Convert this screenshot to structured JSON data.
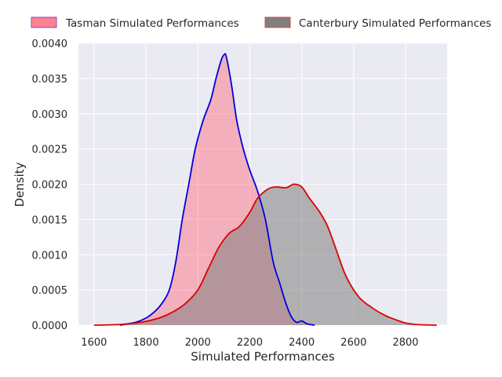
{
  "chart_data": {
    "type": "area",
    "title": "",
    "xlabel": "Simulated Performances",
    "ylabel": "Density",
    "xlim": [
      1540,
      2960
    ],
    "ylim": [
      0,
      0.004
    ],
    "xticks": [
      1600,
      1800,
      2000,
      2200,
      2400,
      2600,
      2800
    ],
    "xtick_labels": [
      "1600",
      "1800",
      "2000",
      "2200",
      "2400",
      "2600",
      "2800"
    ],
    "yticks": [
      0,
      0.0005,
      0.001,
      0.0015,
      0.002,
      0.0025,
      0.003,
      0.0035,
      0.004
    ],
    "ytick_labels": [
      "0.0000",
      "0.0005",
      "0.0010",
      "0.0015",
      "0.0020",
      "0.0025",
      "0.0030",
      "0.0035",
      "0.0040"
    ],
    "grid": true,
    "legend_position": "top",
    "background": "#EAEAF2",
    "series": [
      {
        "name": "Tasman Simulated Performances",
        "line_color": "#0000DD",
        "fill_color": "#FF6B7A",
        "fill_opacity": 0.45,
        "legend_edge": "#8844CC",
        "points": [
          [
            1700,
            0.0
          ],
          [
            1760,
            4e-05
          ],
          [
            1800,
            0.0001
          ],
          [
            1830,
            0.00018
          ],
          [
            1860,
            0.0003
          ],
          [
            1890,
            0.0005
          ],
          [
            1915,
            0.0009
          ],
          [
            1940,
            0.0015
          ],
          [
            1965,
            0.002
          ],
          [
            1990,
            0.0025
          ],
          [
            2020,
            0.0029
          ],
          [
            2050,
            0.0032
          ],
          [
            2070,
            0.0035
          ],
          [
            2090,
            0.00376
          ],
          [
            2102,
            0.00384
          ],
          [
            2110,
            0.0038
          ],
          [
            2130,
            0.0034
          ],
          [
            2150,
            0.0029
          ],
          [
            2175,
            0.0025
          ],
          [
            2200,
            0.0022
          ],
          [
            2230,
            0.0019
          ],
          [
            2260,
            0.0015
          ],
          [
            2290,
            0.0009
          ],
          [
            2315,
            0.0006
          ],
          [
            2340,
            0.0003
          ],
          [
            2360,
            0.00012
          ],
          [
            2380,
            4e-05
          ],
          [
            2400,
            6e-05
          ],
          [
            2420,
            2e-05
          ],
          [
            2450,
            0.0
          ]
        ]
      },
      {
        "name": "Canterbury Simulated Performances",
        "line_color": "#DD0000",
        "fill_color": "#808080",
        "fill_opacity": 0.55,
        "legend_edge": "#DD4444",
        "points": [
          [
            1600,
            0.0
          ],
          [
            1700,
            1e-05
          ],
          [
            1780,
            4e-05
          ],
          [
            1850,
            0.0001
          ],
          [
            1900,
            0.00018
          ],
          [
            1950,
            0.0003
          ],
          [
            2000,
            0.0005
          ],
          [
            2040,
            0.0008
          ],
          [
            2080,
            0.0011
          ],
          [
            2120,
            0.0013
          ],
          [
            2160,
            0.0014
          ],
          [
            2200,
            0.0016
          ],
          [
            2230,
            0.0018
          ],
          [
            2270,
            0.00193
          ],
          [
            2300,
            0.00196
          ],
          [
            2340,
            0.00195
          ],
          [
            2370,
            0.002
          ],
          [
            2400,
            0.00196
          ],
          [
            2430,
            0.0018
          ],
          [
            2470,
            0.0016
          ],
          [
            2500,
            0.0014
          ],
          [
            2530,
            0.0011
          ],
          [
            2570,
            0.0007
          ],
          [
            2620,
            0.0004
          ],
          [
            2670,
            0.00025
          ],
          [
            2720,
            0.00014
          ],
          [
            2760,
            8e-05
          ],
          [
            2800,
            3e-05
          ],
          [
            2840,
            1e-05
          ],
          [
            2920,
            0.0
          ]
        ]
      }
    ]
  }
}
